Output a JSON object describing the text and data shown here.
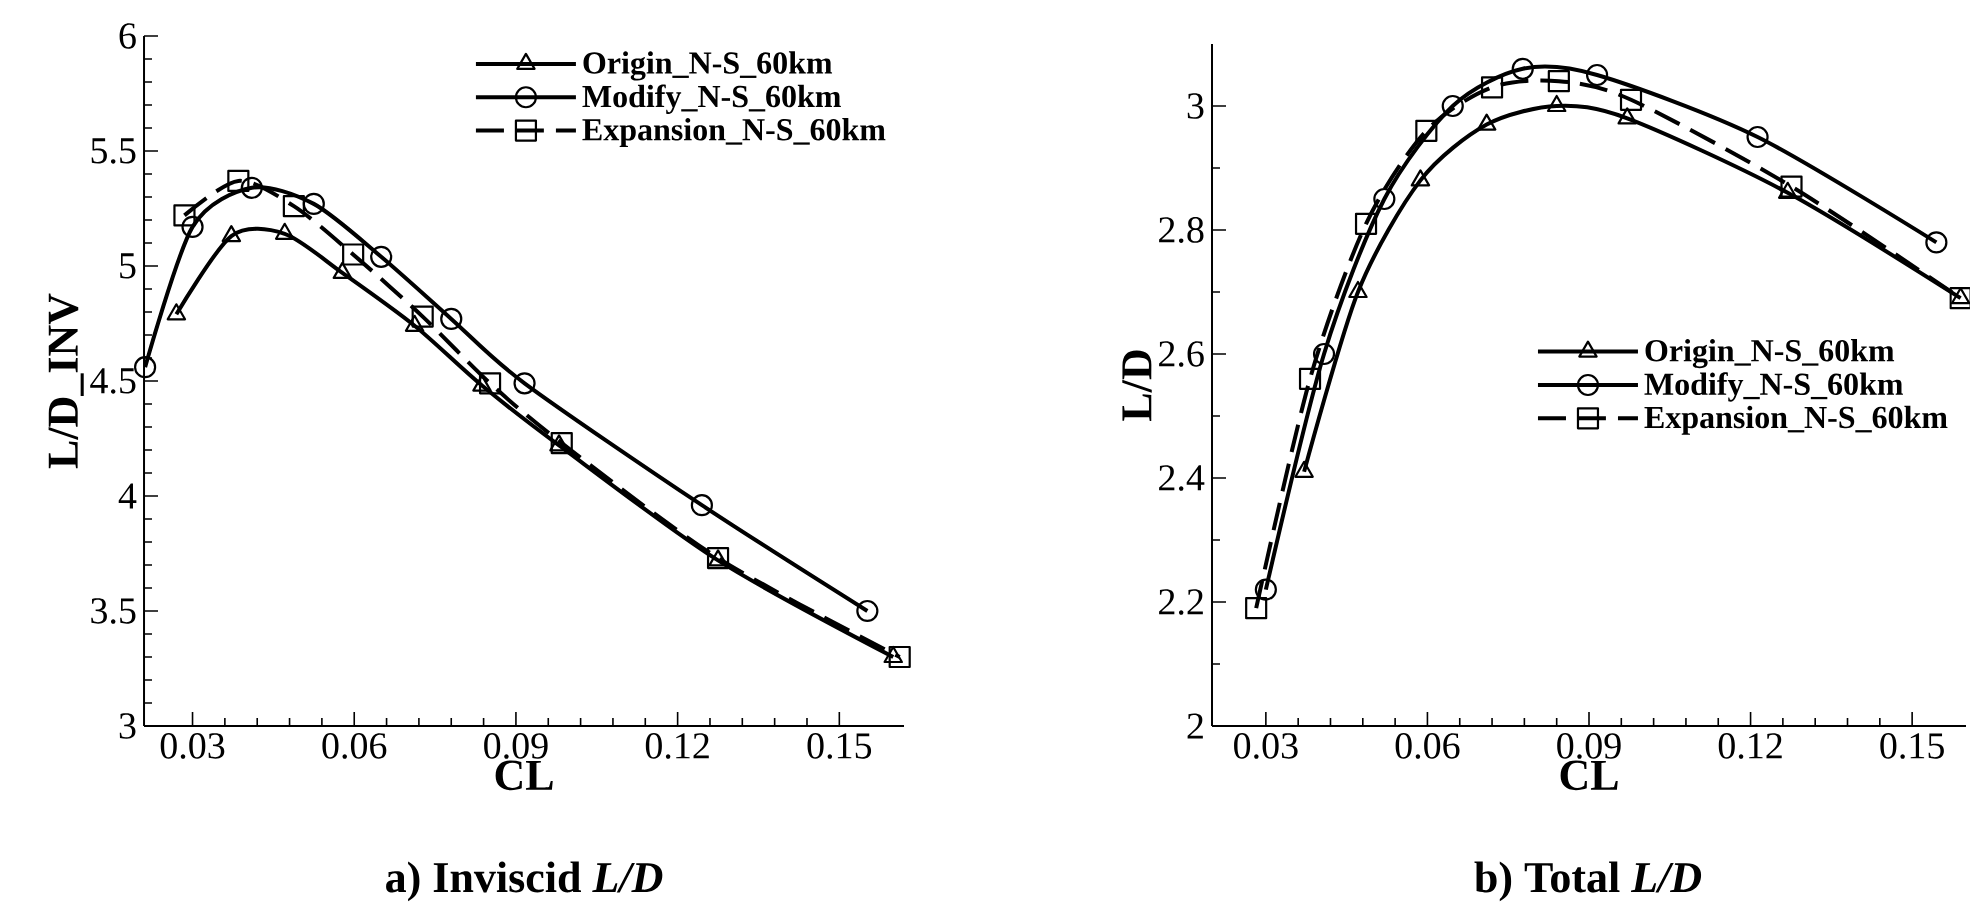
{
  "chart_data": [
    {
      "type": "line",
      "title": "a) Inviscid *L/D*",
      "xlabel": "CL",
      "ylabel": "L/D_INV",
      "xlim": [
        0.021,
        0.162
      ],
      "ylim": [
        3,
        6
      ],
      "xticks": [
        0.03,
        0.06,
        0.09,
        0.12,
        0.15
      ],
      "yticks": [
        3,
        3.5,
        4,
        4.5,
        5,
        5.5,
        6
      ],
      "legend": "top right",
      "grid": false,
      "series": [
        {
          "name": "Origin_N-S_60km",
          "color": "#000000",
          "marker": "triangle",
          "line_style": "solid",
          "x": [
            0.027,
            0.0372,
            0.0471,
            0.0578,
            0.0712,
            0.0837,
            0.098,
            0.1275,
            0.16
          ],
          "values": [
            4.79,
            5.13,
            5.14,
            4.97,
            4.74,
            4.48,
            4.22,
            3.72,
            3.3
          ]
        },
        {
          "name": "Modify_N-S_60km",
          "color": "#000000",
          "marker": "circle",
          "line_style": "solid",
          "x": [
            0.0212,
            0.03,
            0.041,
            0.0525,
            0.065,
            0.078,
            0.0916,
            0.1245,
            0.1552
          ],
          "values": [
            4.56,
            5.17,
            5.34,
            5.27,
            5.04,
            4.77,
            4.49,
            3.96,
            3.5
          ]
        },
        {
          "name": "Expansion_N-S_60km",
          "color": "#000000",
          "marker": "square",
          "line_style": "dashed",
          "x": [
            0.0285,
            0.0385,
            0.0488,
            0.0598,
            0.0727,
            0.0852,
            0.0985,
            0.1275,
            0.1612
          ],
          "values": [
            5.22,
            5.37,
            5.26,
            5.05,
            4.78,
            4.49,
            4.23,
            3.73,
            3.3
          ]
        }
      ]
    },
    {
      "type": "line",
      "title": "b) Total *L/D*",
      "xlabel": "CL",
      "ylabel": "L/D",
      "xlim": [
        0.02,
        0.16
      ],
      "ylim": [
        2,
        3.1
      ],
      "xticks": [
        0.03,
        0.06,
        0.09,
        0.12,
        0.15
      ],
      "yticks": [
        2,
        2.2,
        2.4,
        2.6,
        2.8,
        3
      ],
      "legend": "right",
      "grid": false,
      "series": [
        {
          "name": "Origin_N-S_60km",
          "color": "#000000",
          "marker": "triangle",
          "line_style": "solid",
          "x": [
            0.0371,
            0.0471,
            0.0587,
            0.071,
            0.084,
            0.0971,
            0.1269,
            0.159
          ],
          "values": [
            2.41,
            2.7,
            2.88,
            2.97,
            3.0,
            2.98,
            2.86,
            2.69
          ]
        },
        {
          "name": "Modify_N-S_60km",
          "color": "#000000",
          "marker": "circle",
          "line_style": "solid",
          "x": [
            0.03,
            0.0408,
            0.052,
            0.0647,
            0.0777,
            0.0915,
            0.1213,
            0.1545
          ],
          "values": [
            2.22,
            2.6,
            2.85,
            3.0,
            3.06,
            3.05,
            2.95,
            2.78
          ]
        },
        {
          "name": "Expansion_N-S_60km",
          "color": "#000000",
          "marker": "square",
          "line_style": "dashed",
          "x": [
            0.0282,
            0.0382,
            0.0486,
            0.0598,
            0.072,
            0.0844,
            0.0978,
            0.1276,
            0.159
          ],
          "values": [
            2.19,
            2.56,
            2.81,
            2.96,
            3.03,
            3.04,
            3.01,
            2.87,
            2.69
          ]
        }
      ]
    }
  ]
}
